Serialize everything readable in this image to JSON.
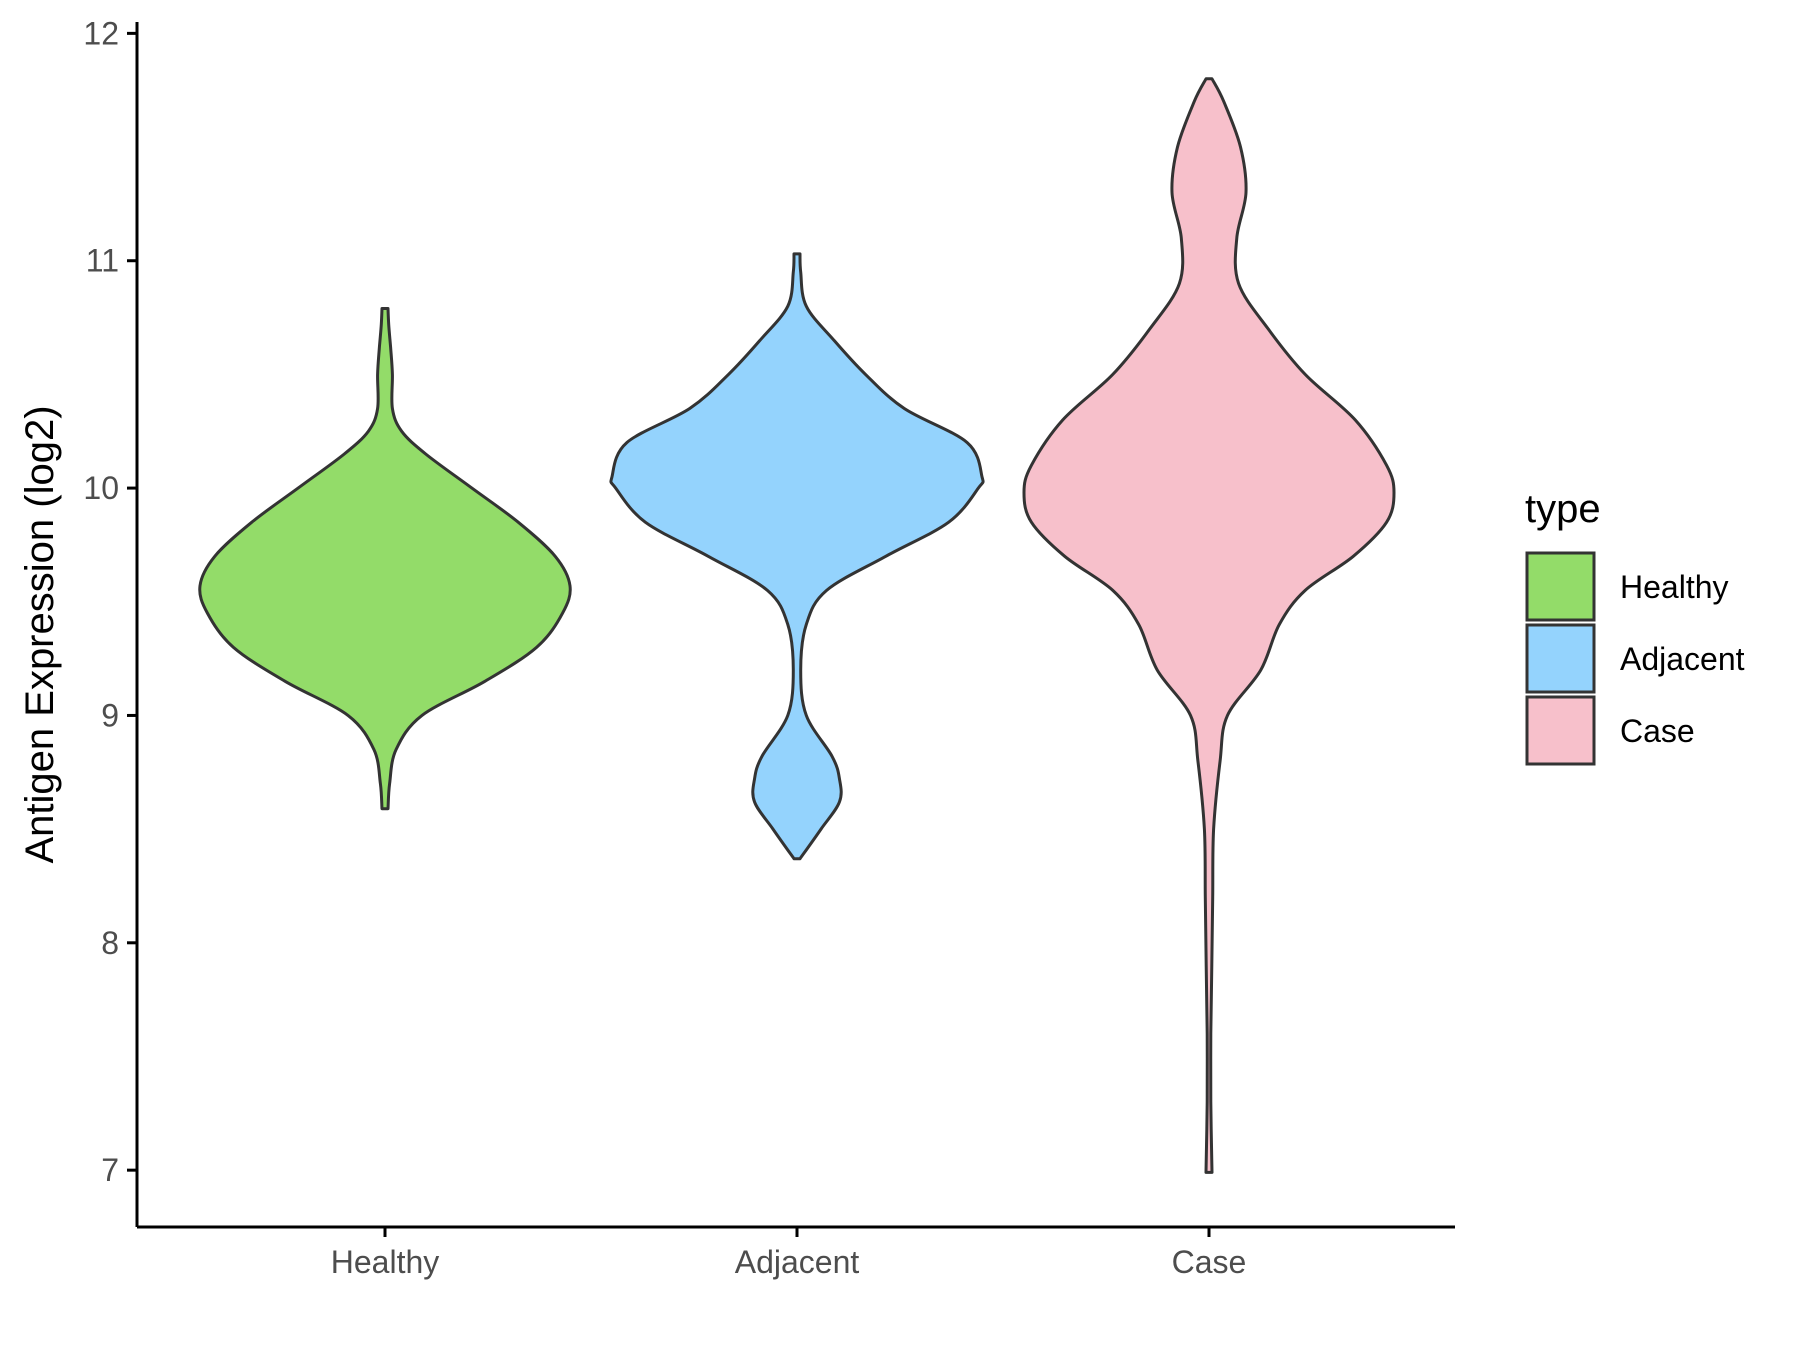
{
  "chart_data": {
    "type": "violin",
    "ylabel": "Antigen Expression (log2)",
    "xlabel": "",
    "ylim": [
      6.75,
      12.05
    ],
    "yticks": [
      7,
      8,
      9,
      10,
      11,
      12
    ],
    "ytick_labels": [
      "7",
      "8",
      "9",
      "10",
      "11",
      "12"
    ],
    "categories": [
      "Healthy",
      "Adjacent",
      "Case"
    ],
    "legend": {
      "title": "type",
      "position": "right",
      "entries": [
        "Healthy",
        "Adjacent",
        "Case"
      ]
    },
    "grid": false,
    "series": [
      {
        "name": "Healthy",
        "color": "#93DC69",
        "min": 8.59,
        "max": 10.79,
        "density": [
          [
            8.59,
            0.0
          ],
          [
            8.7,
            0.025
          ],
          [
            8.85,
            0.06
          ],
          [
            9.0,
            0.2
          ],
          [
            9.15,
            0.54
          ],
          [
            9.3,
            0.82
          ],
          [
            9.45,
            0.96
          ],
          [
            9.57,
            1.0
          ],
          [
            9.7,
            0.92
          ],
          [
            9.85,
            0.72
          ],
          [
            10.0,
            0.47
          ],
          [
            10.15,
            0.22
          ],
          [
            10.25,
            0.09
          ],
          [
            10.35,
            0.04
          ],
          [
            10.5,
            0.04
          ],
          [
            10.62,
            0.03
          ],
          [
            10.72,
            0.02
          ],
          [
            10.79,
            0.0
          ]
        ]
      },
      {
        "name": "Adjacent",
        "color": "#94D3FD",
        "min": 8.37,
        "max": 11.03,
        "density": [
          [
            8.37,
            0.0
          ],
          [
            8.5,
            0.13
          ],
          [
            8.62,
            0.23
          ],
          [
            8.72,
            0.23
          ],
          [
            8.82,
            0.19
          ],
          [
            9.0,
            0.05
          ],
          [
            9.2,
            0.02
          ],
          [
            9.4,
            0.05
          ],
          [
            9.55,
            0.16
          ],
          [
            9.7,
            0.48
          ],
          [
            9.85,
            0.82
          ],
          [
            10.0,
            0.98
          ],
          [
            10.05,
            1.0
          ],
          [
            10.2,
            0.92
          ],
          [
            10.35,
            0.58
          ],
          [
            10.5,
            0.37
          ],
          [
            10.65,
            0.2
          ],
          [
            10.8,
            0.05
          ],
          [
            10.95,
            0.02
          ],
          [
            11.03,
            0.0
          ]
        ]
      },
      {
        "name": "Case",
        "color": "#F7C0CB",
        "min": 6.99,
        "max": 11.8,
        "density": [
          [
            6.99,
            0.0
          ],
          [
            7.3,
            0.01
          ],
          [
            7.6,
            0.01
          ],
          [
            7.9,
            0.015
          ],
          [
            8.2,
            0.02
          ],
          [
            8.5,
            0.025
          ],
          [
            8.8,
            0.06
          ],
          [
            9.0,
            0.1
          ],
          [
            9.2,
            0.28
          ],
          [
            9.4,
            0.38
          ],
          [
            9.55,
            0.52
          ],
          [
            9.7,
            0.78
          ],
          [
            9.85,
            0.96
          ],
          [
            9.98,
            1.0
          ],
          [
            10.1,
            0.96
          ],
          [
            10.3,
            0.79
          ],
          [
            10.5,
            0.52
          ],
          [
            10.7,
            0.32
          ],
          [
            10.9,
            0.16
          ],
          [
            11.1,
            0.15
          ],
          [
            11.3,
            0.2
          ],
          [
            11.5,
            0.17
          ],
          [
            11.7,
            0.08
          ],
          [
            11.8,
            0.0
          ]
        ]
      }
    ]
  }
}
